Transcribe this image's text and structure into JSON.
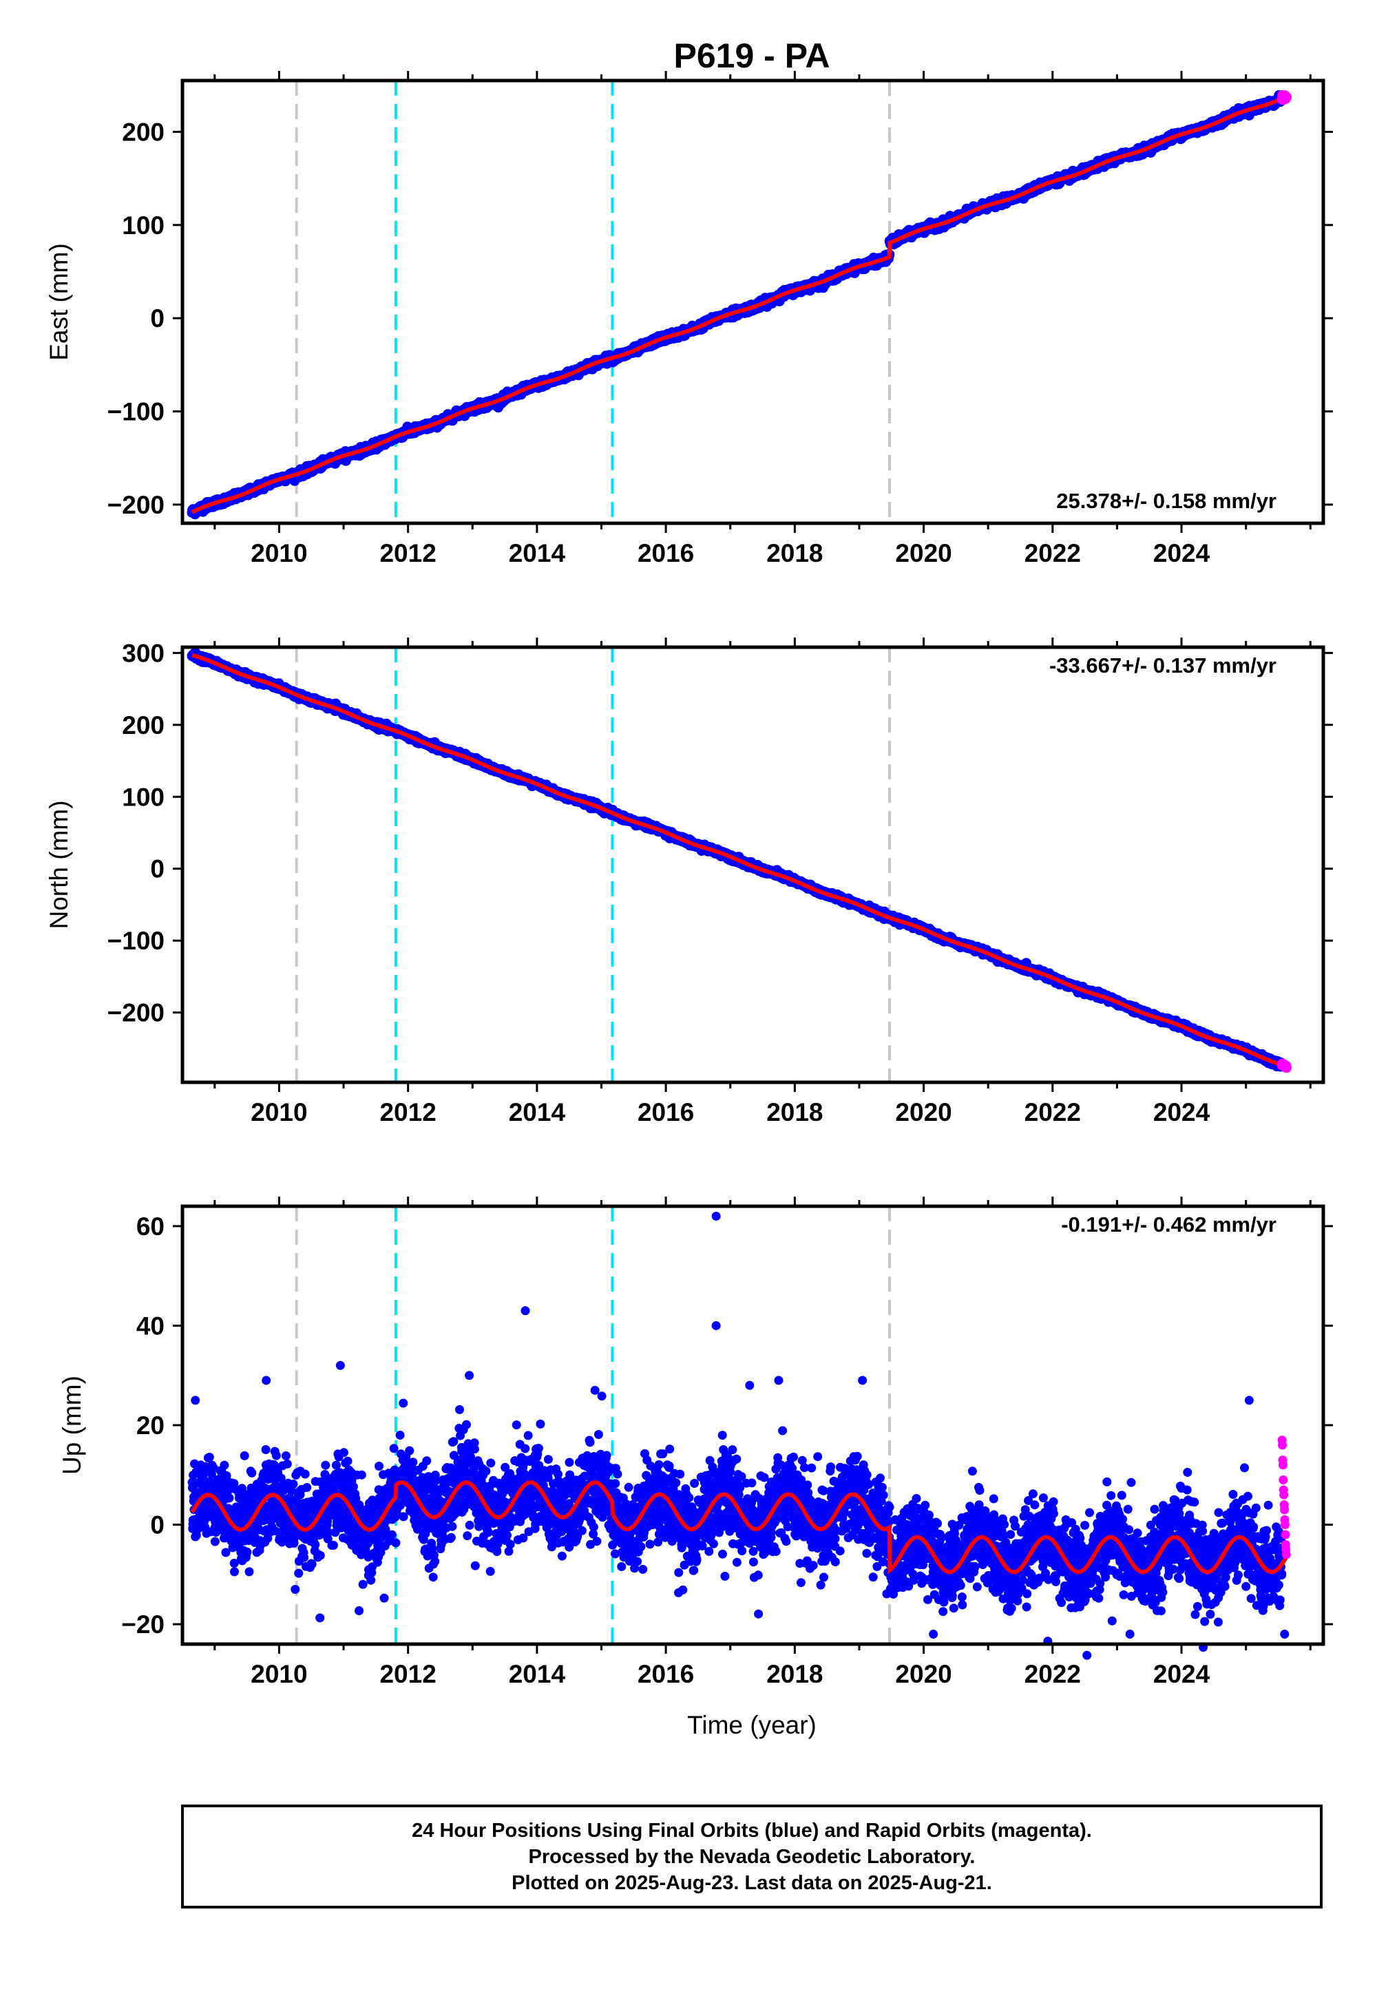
{
  "title": "P619 - PA",
  "colors": {
    "final_orbits": "#0000ff",
    "rapid_orbits": "#ff00ff",
    "model": "#ff0000",
    "equipment_change": "#c8c8c8",
    "earthquake": "#00e5ee"
  },
  "xlabel": "Time (year)",
  "footer": {
    "line1": "24 Hour Positions Using Final Orbits (blue) and Rapid Orbits (magenta).",
    "line2": "Processed by the Nevada Geodetic Laboratory.",
    "line3": "Plotted on 2025-Aug-23. Last data on 2025-Aug-21."
  },
  "chart_data": [
    {
      "type": "scatter",
      "panel": "east",
      "ylabel": "East (mm)",
      "xlim": [
        2008.5,
        2026.2
      ],
      "ylim": [
        -220,
        255
      ],
      "xticks": [
        2010,
        2012,
        2014,
        2016,
        2018,
        2020,
        2022,
        2024
      ],
      "yticks": [
        -200,
        -100,
        0,
        100,
        200
      ],
      "ytick_labels": [
        "−200",
        "−100",
        "0",
        "100",
        "200"
      ],
      "rate_label": "25.378+/- 0.158 mm/yr",
      "rate_label_position": "bottom-right",
      "vlines_gray": [
        2010.27,
        2019.47
      ],
      "vlines_cyan": [
        2011.81,
        2015.17
      ],
      "data_start": 2008.65,
      "data_end": 2025.63,
      "rapid_start": 2025.56,
      "rate": 25.378,
      "value_at_start": -208,
      "offset_at_2019_47": 15,
      "annual_amplitude": 2.5,
      "noise": 1.8
    },
    {
      "type": "scatter",
      "panel": "north",
      "ylabel": "North (mm)",
      "xlim": [
        2008.5,
        2026.2
      ],
      "ylim": [
        -297,
        308
      ],
      "xticks": [
        2010,
        2012,
        2014,
        2016,
        2018,
        2020,
        2022,
        2024
      ],
      "yticks": [
        -200,
        -100,
        0,
        100,
        200,
        300
      ],
      "ytick_labels": [
        "−200",
        "−100",
        "0",
        "100",
        "200",
        "300"
      ],
      "rate_label": "-33.667+/- 0.137 mm/yr",
      "rate_label_position": "top-right",
      "vlines_gray": [
        2010.27,
        2019.47
      ],
      "vlines_cyan": [
        2011.81,
        2015.17
      ],
      "data_start": 2008.65,
      "data_end": 2025.63,
      "rapid_start": 2025.56,
      "rate": -33.667,
      "value_at_start": 297,
      "offset_at_2019_47": 0,
      "annual_amplitude": 2.5,
      "noise": 1.8
    },
    {
      "type": "scatter",
      "panel": "up",
      "ylabel": "Up (mm)",
      "xlim": [
        2008.5,
        2026.2
      ],
      "ylim": [
        -24,
        64
      ],
      "xticks": [
        2010,
        2012,
        2014,
        2016,
        2018,
        2020,
        2022,
        2024
      ],
      "yticks": [
        -20,
        0,
        20,
        40,
        60
      ],
      "ytick_labels": [
        "−20",
        "0",
        "20",
        "40",
        "60"
      ],
      "rate_label": "-0.191+/- 0.462 mm/yr",
      "rate_label_position": "top-right",
      "vlines_gray": [
        2010.27,
        2019.47
      ],
      "vlines_cyan": [
        2011.81,
        2015.17
      ],
      "data_start": 2008.65,
      "data_end": 2025.63,
      "rapid_start": 2025.56,
      "rate": -0.191,
      "segment_means": [
        {
          "from": 2008.65,
          "to": 2011.81,
          "mean": 2.5
        },
        {
          "from": 2011.81,
          "to": 2015.17,
          "mean": 5.0
        },
        {
          "from": 2015.17,
          "to": 2019.47,
          "mean": 2.6
        },
        {
          "from": 2019.47,
          "to": 2025.63,
          "mean": -6.0
        }
      ],
      "annual_amplitude": 3.5,
      "noise": 4.0,
      "outliers": [
        {
          "x": 2016.78,
          "y": 62
        },
        {
          "x": 2013.82,
          "y": 43
        },
        {
          "x": 2016.78,
          "y": 40
        },
        {
          "x": 2012.95,
          "y": 30
        },
        {
          "x": 2010.95,
          "y": 32
        },
        {
          "x": 2009.8,
          "y": 29
        },
        {
          "x": 2014.9,
          "y": 27
        },
        {
          "x": 2017.75,
          "y": 29
        },
        {
          "x": 2019.05,
          "y": 29
        },
        {
          "x": 2025.05,
          "y": 25
        },
        {
          "x": 2008.7,
          "y": 25
        },
        {
          "x": 2017.3,
          "y": 28
        },
        {
          "x": 2010.25,
          "y": -13
        },
        {
          "x": 2020.15,
          "y": -22
        },
        {
          "x": 2023.2,
          "y": -22
        },
        {
          "x": 2025.6,
          "y": -22
        },
        {
          "x": 2011.3,
          "y": -12
        }
      ],
      "rapid_values": [
        17,
        16,
        13,
        12,
        9,
        7,
        6,
        4,
        3,
        1,
        0,
        -2,
        -4,
        -5,
        -6
      ]
    }
  ]
}
